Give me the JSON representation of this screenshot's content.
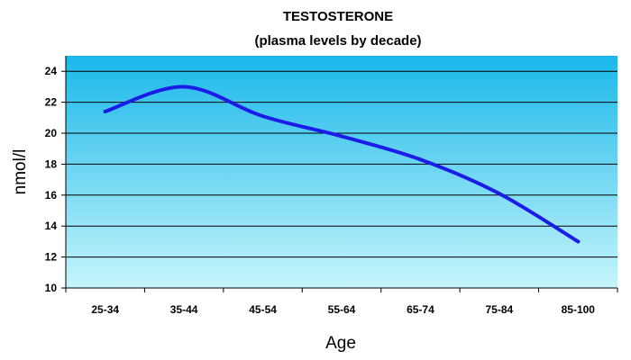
{
  "chart_data": {
    "type": "line",
    "title": "TESTOSTERONE",
    "subtitle": "(plasma levels by decade)",
    "xlabel": "Age",
    "ylabel": "nmol/l",
    "categories": [
      "25-34",
      "35-44",
      "45-54",
      "55-64",
      "65-74",
      "75-84",
      "85-100"
    ],
    "series": [
      {
        "values": [
          21.4,
          23.0,
          21.1,
          19.8,
          18.3,
          16.1,
          13.0
        ]
      }
    ],
    "y_ticks": [
      "10",
      "12",
      "14",
      "16",
      "18",
      "20",
      "22",
      "24"
    ],
    "ylim": [
      10,
      25
    ],
    "grid": true,
    "legend": "none",
    "colors": {
      "line": "#1c1ce8",
      "bg_top": "#1ab8ea",
      "bg_bottom": "#c6f5fb"
    }
  }
}
